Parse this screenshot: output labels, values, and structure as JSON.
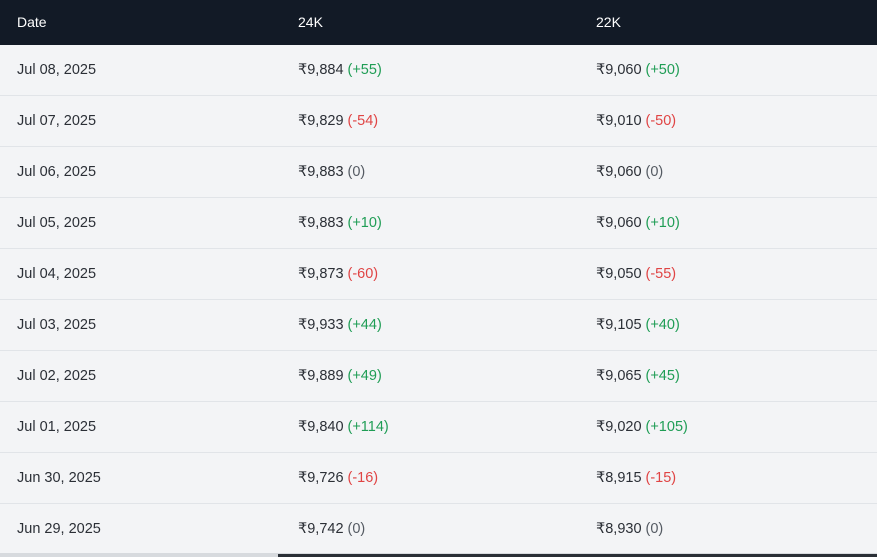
{
  "table": {
    "headers": [
      "Date",
      "24K",
      "22K"
    ],
    "rows": [
      {
        "date": "Jul 08, 2025",
        "k24": "₹9,884",
        "k24_change": "(+55)",
        "k24_dir": "up",
        "k22": "₹9,060",
        "k22_change": "(+50)",
        "k22_dir": "up"
      },
      {
        "date": "Jul 07, 2025",
        "k24": "₹9,829",
        "k24_change": "(-54)",
        "k24_dir": "down",
        "k22": "₹9,010",
        "k22_change": "(-50)",
        "k22_dir": "down"
      },
      {
        "date": "Jul 06, 2025",
        "k24": "₹9,883",
        "k24_change": "(0)",
        "k24_dir": "zero",
        "k22": "₹9,060",
        "k22_change": "(0)",
        "k22_dir": "zero"
      },
      {
        "date": "Jul 05, 2025",
        "k24": "₹9,883",
        "k24_change": "(+10)",
        "k24_dir": "up",
        "k22": "₹9,060",
        "k22_change": "(+10)",
        "k22_dir": "up"
      },
      {
        "date": "Jul 04, 2025",
        "k24": "₹9,873",
        "k24_change": "(-60)",
        "k24_dir": "down",
        "k22": "₹9,050",
        "k22_change": "(-55)",
        "k22_dir": "down"
      },
      {
        "date": "Jul 03, 2025",
        "k24": "₹9,933",
        "k24_change": "(+44)",
        "k24_dir": "up",
        "k22": "₹9,105",
        "k22_change": "(+40)",
        "k22_dir": "up"
      },
      {
        "date": "Jul 02, 2025",
        "k24": "₹9,889",
        "k24_change": "(+49)",
        "k24_dir": "up",
        "k22": "₹9,065",
        "k22_change": "(+45)",
        "k22_dir": "up"
      },
      {
        "date": "Jul 01, 2025",
        "k24": "₹9,840",
        "k24_change": "(+114)",
        "k24_dir": "up",
        "k22": "₹9,020",
        "k22_change": "(+105)",
        "k22_dir": "up"
      },
      {
        "date": "Jun 30, 2025",
        "k24": "₹9,726",
        "k24_change": "(-16)",
        "k24_dir": "down",
        "k22": "₹8,915",
        "k22_change": "(-15)",
        "k22_dir": "down"
      },
      {
        "date": "Jun 29, 2025",
        "k24": "₹9,742",
        "k24_change": "(0)",
        "k24_dir": "zero",
        "k22": "₹8,930",
        "k22_change": "(0)",
        "k22_dir": "zero"
      }
    ]
  },
  "colors": {
    "header_bg": "#121a26",
    "row_bg": "#f3f4f6",
    "up": "#1f9d55",
    "down": "#e04444",
    "zero": "#555b63"
  }
}
